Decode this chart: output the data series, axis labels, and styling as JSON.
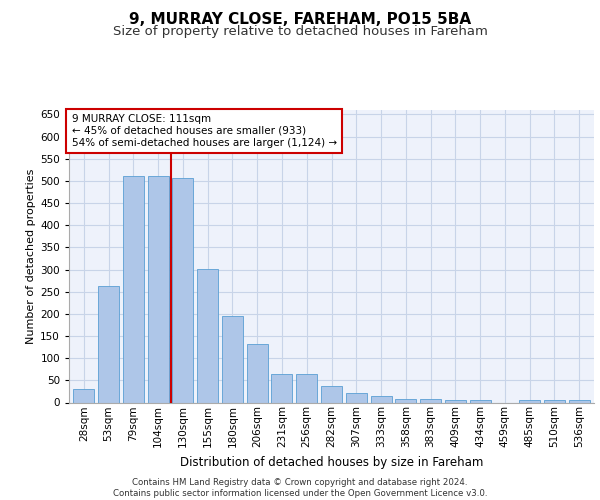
{
  "title1": "9, MURRAY CLOSE, FAREHAM, PO15 5BA",
  "title2": "Size of property relative to detached houses in Fareham",
  "xlabel": "Distribution of detached houses by size in Fareham",
  "ylabel": "Number of detached properties",
  "categories": [
    "28sqm",
    "53sqm",
    "79sqm",
    "104sqm",
    "130sqm",
    "155sqm",
    "180sqm",
    "206sqm",
    "231sqm",
    "256sqm",
    "282sqm",
    "307sqm",
    "333sqm",
    "358sqm",
    "383sqm",
    "409sqm",
    "434sqm",
    "459sqm",
    "485sqm",
    "510sqm",
    "536sqm"
  ],
  "values": [
    30,
    263,
    511,
    511,
    507,
    302,
    196,
    132,
    65,
    65,
    37,
    22,
    15,
    9,
    9,
    5,
    5,
    0,
    5,
    5,
    5
  ],
  "bar_color": "#aec6e8",
  "bar_edge_color": "#5a9fd4",
  "vline_x": 3.5,
  "vline_color": "#cc0000",
  "annotation_text": "9 MURRAY CLOSE: 111sqm\n← 45% of detached houses are smaller (933)\n54% of semi-detached houses are larger (1,124) →",
  "annotation_box_color": "#ffffff",
  "annotation_box_edge": "#cc0000",
  "ylim": [
    0,
    660
  ],
  "yticks": [
    0,
    50,
    100,
    150,
    200,
    250,
    300,
    350,
    400,
    450,
    500,
    550,
    600,
    650
  ],
  "footer": "Contains HM Land Registry data © Crown copyright and database right 2024.\nContains public sector information licensed under the Open Government Licence v3.0.",
  "bg_color": "#eef2fb",
  "grid_color": "#c8d4e8",
  "title1_fontsize": 11,
  "title2_fontsize": 9.5,
  "xlabel_fontsize": 8.5,
  "ylabel_fontsize": 8,
  "tick_fontsize": 7.5,
  "footer_fontsize": 6.2,
  "annot_fontsize": 7.5
}
